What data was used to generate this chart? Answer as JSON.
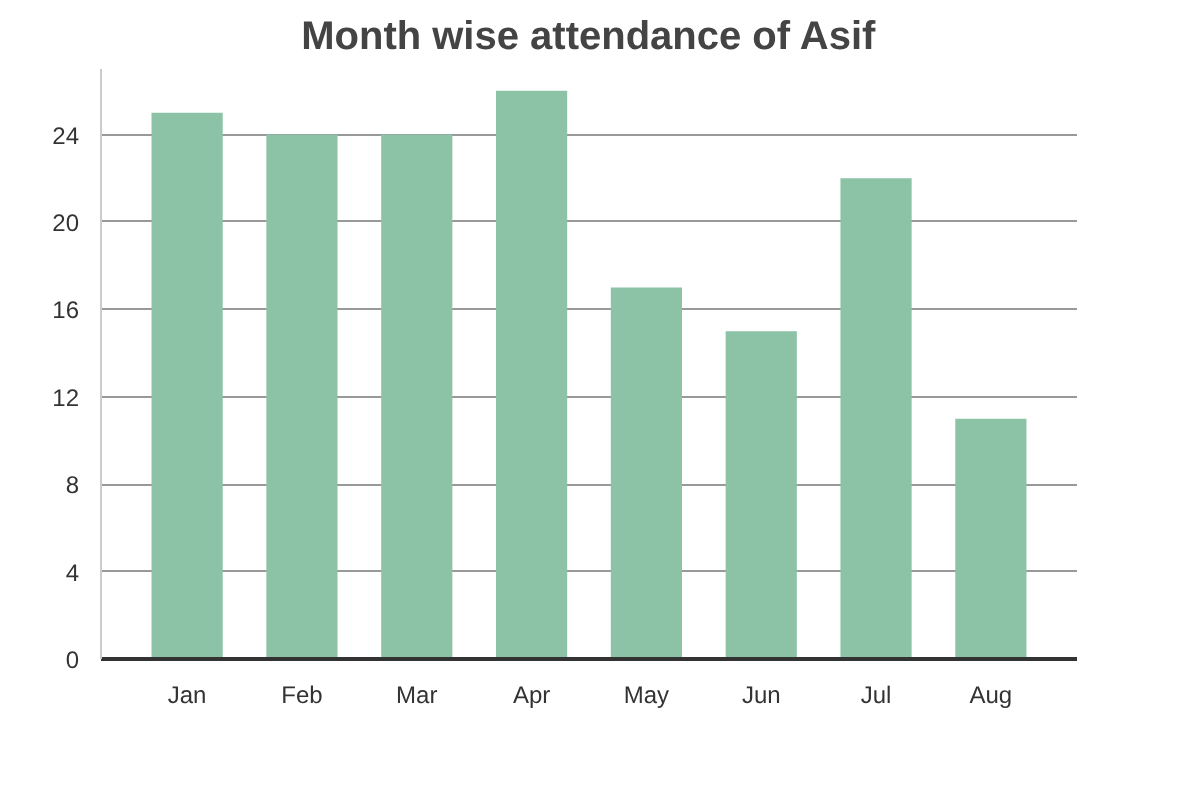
{
  "chart_data": {
    "type": "bar",
    "title": "Month wise attendance of Asif",
    "categories": [
      "Jan",
      "Feb",
      "Mar",
      "Apr",
      "May",
      "Jun",
      "Jul",
      "Aug"
    ],
    "values": [
      25,
      24,
      24,
      26,
      17,
      15,
      22,
      11
    ],
    "color": "#8cc3a6",
    "ylim": [
      0,
      27
    ],
    "yticks": [
      0,
      4,
      8,
      12,
      16,
      20,
      24
    ],
    "grid": "y"
  }
}
